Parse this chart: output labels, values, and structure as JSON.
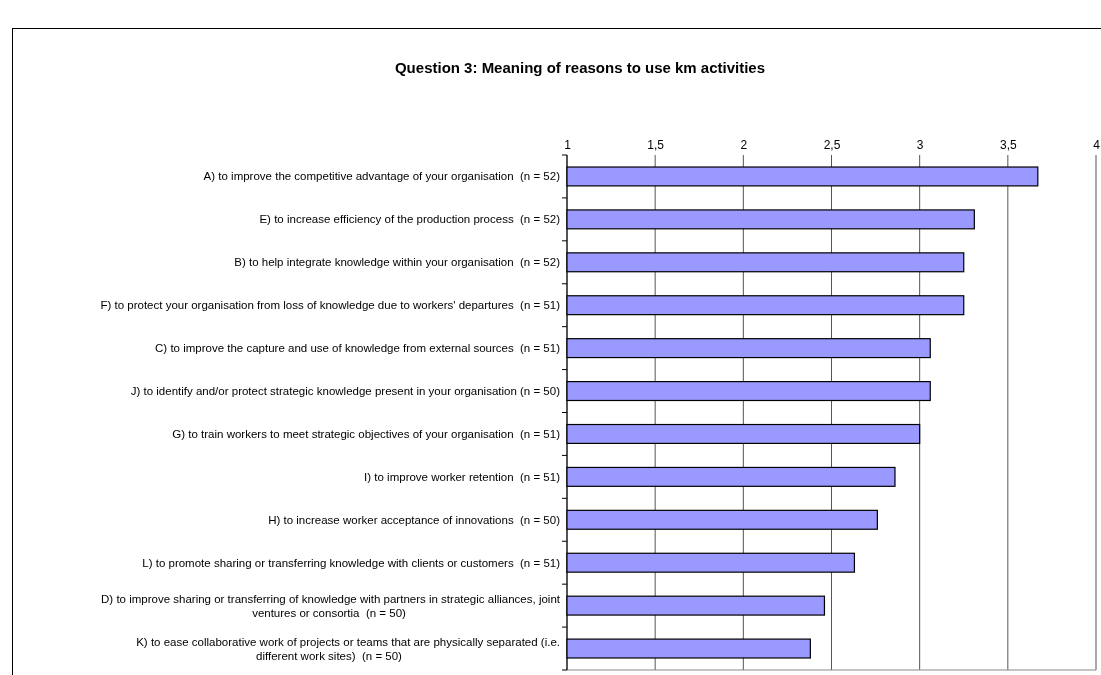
{
  "chart_data": {
    "type": "bar",
    "orientation": "horizontal",
    "title": "Question 3: Meaning of reasons to use km activities",
    "categories": [
      "A) to improve the competitive advantage of your organisation  (n = 52)",
      "E) to increase efficiency of the production process  (n = 52)",
      "B) to help integrate knowledge within your organisation  (n = 52)",
      "F) to protect your organisation from loss of knowledge due to workers' departures  (n = 51)",
      "C) to improve the capture and use of knowledge from external sources  (n = 51)",
      "J) to identify and/or protect strategic knowledge present in your organisation (n = 50)",
      "G) to train workers to meet strategic objectives of your organisation  (n = 51)",
      "I) to improve worker retention  (n = 51)",
      "H) to increase worker acceptance of innovations  (n = 50)",
      "L) to promote sharing or transferring knowledge with clients or customers  (n = 51)",
      "D) to improve sharing or transferring of knowledge with partners in strategic alliances, joint ventures or consortia  (n = 50)",
      "K) to ease collaborative work of projects or teams that are physically separated (i.e. different work sites)  (n = 50)"
    ],
    "values": [
      3.67,
      3.31,
      3.25,
      3.25,
      3.06,
      3.06,
      3.0,
      2.86,
      2.76,
      2.63,
      2.46,
      2.38
    ],
    "color": "#9999ff",
    "xlim": [
      1,
      4
    ],
    "xticks": [
      1,
      {
        "value": 1.5,
        "label": "1,5"
      },
      2,
      {
        "value": 2.5,
        "label": "2,5"
      },
      3,
      {
        "value": 3.5,
        "label": "3,5"
      },
      4
    ],
    "grid": "x"
  }
}
